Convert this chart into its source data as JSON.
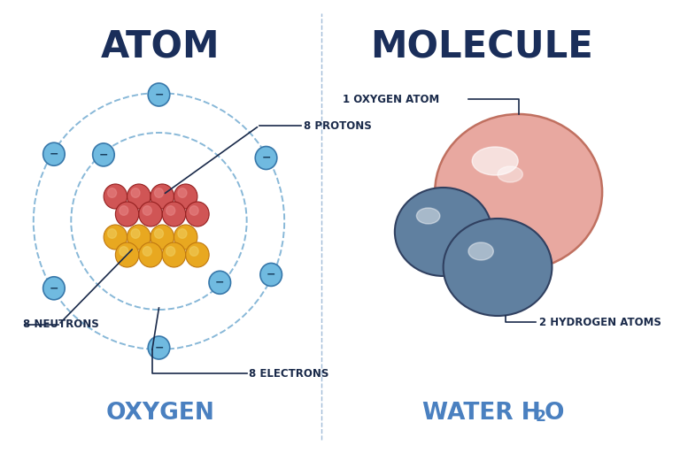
{
  "bg_color": "#ffffff",
  "divider_color": "#a0bcd8",
  "title_left": "ATOM",
  "title_right": "MOLECULE",
  "subtitle_left": "OXYGEN",
  "title_color": "#1a2e5a",
  "subtitle_color": "#4a80c0",
  "label_color": "#1a2a4a",
  "label_fontsize": 8.5,
  "title_fontsize": 30,
  "subtitle_fontsize": 19,
  "proton_color": "#d05555",
  "proton_highlight": "#e88888",
  "proton_edge": "#952020",
  "neutron_color": "#e8a820",
  "neutron_highlight": "#f0d060",
  "neutron_edge": "#c07810",
  "electron_fill": "#70bae0",
  "electron_edge": "#3878aa",
  "orbit_color": "#88b8d8",
  "oxygen_mol_color": "#e8a8a0",
  "oxygen_mol_edge": "#c07060",
  "hydrogen_mol_color": "#6080a0",
  "hydrogen_mol_edge": "#304060"
}
